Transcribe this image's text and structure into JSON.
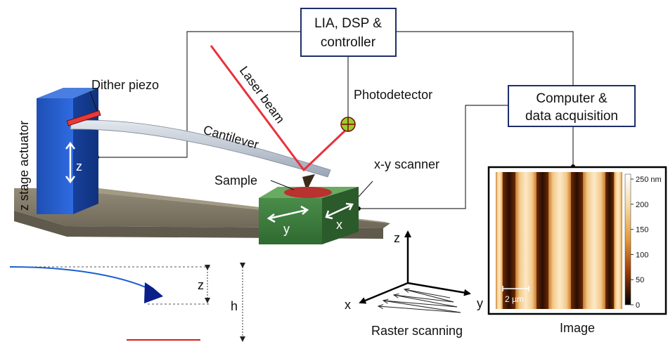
{
  "boxes": {
    "controller_line1": "LIA, DSP &",
    "controller_line2": "controller",
    "computer_line1": "Computer &",
    "computer_line2": "data acquisition"
  },
  "labels": {
    "dither_piezo": "Dither piezo",
    "laser_beam": "Laser beam",
    "photodetector": "Photodetector",
    "cantilever": "Cantilever",
    "z_stage_actuator": "z stage actuator",
    "z_actuator_axis": "z",
    "sample": "Sample",
    "xy_scanner": "x-y scanner",
    "scanner_x": "x",
    "scanner_y": "y",
    "deflection_z": "z",
    "deflection_h": "h",
    "axis_z": "z",
    "axis_x": "x",
    "axis_y": "y",
    "raster_scanning": "Raster scanning",
    "image_caption": "Image"
  },
  "afm_image": {
    "colorbar_ticks": [
      "250 nm",
      "200",
      "150",
      "100",
      "50",
      "0"
    ],
    "colorbar_values": [
      250,
      200,
      150,
      100,
      50,
      0
    ],
    "scale_bar_label": "2 µm"
  },
  "colors": {
    "laser": "#e8323b",
    "actuator_blue": "#2a5fc8",
    "scanner_green": "#3f7d3f",
    "base_gray": "#8a8270",
    "cantilever_blue": "#1a5fd0",
    "sample_red": "#b8322f"
  }
}
